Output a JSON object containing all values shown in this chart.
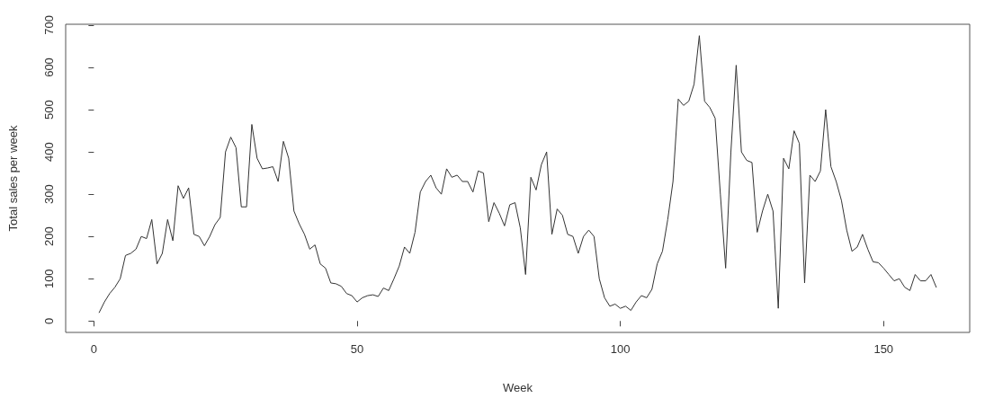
{
  "chart_data": {
    "type": "line",
    "xlabel": "Week",
    "ylabel": "Total sales per week",
    "x": [
      1,
      2,
      3,
      4,
      5,
      6,
      7,
      8,
      9,
      10,
      11,
      12,
      13,
      14,
      15,
      16,
      17,
      18,
      19,
      20,
      21,
      22,
      23,
      24,
      25,
      26,
      27,
      28,
      29,
      30,
      31,
      32,
      33,
      34,
      35,
      36,
      37,
      38,
      39,
      40,
      41,
      42,
      43,
      44,
      45,
      46,
      47,
      48,
      49,
      50,
      51,
      52,
      53,
      54,
      55,
      56,
      57,
      58,
      59,
      60,
      61,
      62,
      63,
      64,
      65,
      66,
      67,
      68,
      69,
      70,
      71,
      72,
      73,
      74,
      75,
      76,
      77,
      78,
      79,
      80,
      81,
      82,
      83,
      84,
      85,
      86,
      87,
      88,
      89,
      90,
      91,
      92,
      93,
      94,
      95,
      96,
      97,
      98,
      99,
      100,
      101,
      102,
      103,
      104,
      105,
      106,
      107,
      108,
      109,
      110,
      111,
      112,
      113,
      114,
      115,
      116,
      117,
      118,
      119,
      120,
      121,
      122,
      123,
      124,
      125,
      126,
      127,
      128,
      129,
      130,
      131,
      132,
      133,
      134,
      135,
      136,
      137,
      138,
      139,
      140,
      141,
      142,
      143,
      144,
      145,
      146,
      147,
      148,
      149,
      150,
      151,
      152,
      153,
      154,
      155,
      156,
      157,
      158,
      159,
      160
    ],
    "series": [
      {
        "color": "#333333",
        "values": [
          20,
          45,
          65,
          80,
          100,
          155,
          160,
          170,
          200,
          195,
          240,
          135,
          160,
          240,
          190,
          320,
          290,
          315,
          205,
          200,
          178,
          200,
          228,
          245,
          400,
          435,
          410,
          270,
          270,
          465,
          385,
          360,
          362,
          365,
          330,
          425,
          385,
          260,
          230,
          205,
          170,
          180,
          135,
          125,
          90,
          88,
          82,
          65,
          60,
          45,
          55,
          60,
          62,
          58,
          78,
          72,
          100,
          130,
          175,
          160,
          210,
          305,
          330,
          345,
          315,
          300,
          360,
          340,
          345,
          330,
          330,
          305,
          355,
          350,
          235,
          280,
          255,
          225,
          275,
          280,
          220,
          110,
          340,
          310,
          370,
          400,
          205,
          265,
          250,
          205,
          200,
          160,
          200,
          215,
          200,
          100,
          55,
          35,
          40,
          30,
          35,
          25,
          45,
          60,
          55,
          75,
          135,
          165,
          240,
          330,
          525,
          510,
          520,
          560,
          675,
          520,
          505,
          480,
          300,
          125,
          400,
          605,
          400,
          380,
          375,
          210,
          260,
          300,
          260,
          30,
          385,
          360,
          450,
          420,
          90,
          345,
          330,
          355,
          500,
          365,
          330,
          285,
          215,
          165,
          175,
          205,
          170,
          140,
          138,
          125,
          110,
          95,
          100,
          80,
          72,
          110,
          95,
          95,
          110,
          80
        ]
      }
    ],
    "xlim": [
      -5.36,
      166.36
    ],
    "xticks": [
      0,
      50,
      100,
      150
    ],
    "ylim": [
      -27,
      702
    ],
    "yticks": [
      0,
      100,
      200,
      300,
      400,
      500,
      600,
      700
    ],
    "marker": "none",
    "line_style": "solid"
  }
}
